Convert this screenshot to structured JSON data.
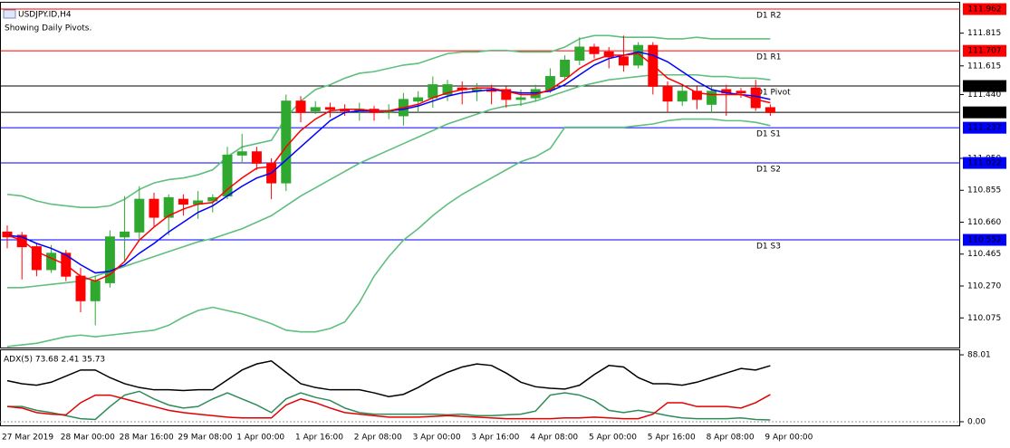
{
  "chart_data": [
    {
      "type": "candlestick",
      "title": "USDJPY.ID,H4",
      "subtitle": "Showing Daily Pivots.",
      "categories": [
        "27 Mar 2019",
        null,
        null,
        null,
        "28 Mar 00:00",
        null,
        null,
        null,
        "28 Mar 16:00",
        null,
        null,
        null,
        "29 Mar 08:00",
        null,
        null,
        null,
        "1 Apr 00:00",
        null,
        null,
        null,
        "1 Apr 16:00",
        null,
        null,
        null,
        "2 Apr 08:00",
        null,
        null,
        null,
        "3 Apr 00:00",
        null,
        null,
        null,
        "3 Apr 16:00",
        null,
        null,
        null,
        "4 Apr 08:00",
        null,
        null,
        null,
        "5 Apr 00:00",
        null,
        null,
        null,
        "5 Apr 16:00",
        null,
        null,
        null,
        "8 Apr 08:00",
        null,
        null,
        null,
        "9 Apr 00:00"
      ],
      "open": [
        110.6,
        110.58,
        110.51,
        110.37,
        110.47,
        110.33,
        110.18,
        110.29,
        110.57,
        110.6,
        110.8,
        110.69,
        110.8,
        110.77,
        110.79,
        110.82,
        111.07,
        111.09,
        111.02,
        110.9,
        111.4,
        111.34,
        111.36,
        111.35,
        111.34,
        111.35,
        111.33,
        111.31,
        111.4,
        111.42,
        111.44,
        111.48,
        111.47,
        111.47,
        111.47,
        111.41,
        111.42,
        111.47,
        111.55,
        111.65,
        111.73,
        111.7,
        111.67,
        111.62,
        111.74,
        111.49,
        111.4,
        111.46,
        111.38,
        111.47,
        111.46,
        111.48,
        111.36
      ],
      "high": [
        110.64,
        110.6,
        110.53,
        110.52,
        110.49,
        110.38,
        110.33,
        110.61,
        110.82,
        110.88,
        110.84,
        110.83,
        110.83,
        110.85,
        110.83,
        111.12,
        111.2,
        111.12,
        111.05,
        111.44,
        111.43,
        111.4,
        111.39,
        111.38,
        111.39,
        111.37,
        111.38,
        111.45,
        111.46,
        111.55,
        111.53,
        111.52,
        111.51,
        111.5,
        111.49,
        111.47,
        111.5,
        111.6,
        111.68,
        111.79,
        111.75,
        111.73,
        111.8,
        111.76,
        111.76,
        111.52,
        111.49,
        111.49,
        111.49,
        111.5,
        111.48,
        111.53,
        111.38
      ],
      "low": [
        110.5,
        110.31,
        110.33,
        110.35,
        110.3,
        110.11,
        110.03,
        110.26,
        110.42,
        110.55,
        110.63,
        110.58,
        110.7,
        110.68,
        110.72,
        110.8,
        111.02,
        110.98,
        110.8,
        110.85,
        111.27,
        111.32,
        111.3,
        111.31,
        111.28,
        111.28,
        111.29,
        111.25,
        111.33,
        111.36,
        111.4,
        111.38,
        111.4,
        111.38,
        111.36,
        111.37,
        111.4,
        111.45,
        111.53,
        111.62,
        111.66,
        111.6,
        111.58,
        111.6,
        111.44,
        111.33,
        111.37,
        111.35,
        111.33,
        111.31,
        111.42,
        111.34,
        111.31
      ],
      "close": [
        110.57,
        110.51,
        110.37,
        110.47,
        110.33,
        110.18,
        110.3,
        110.57,
        110.6,
        110.8,
        110.69,
        110.81,
        110.77,
        110.79,
        110.81,
        111.07,
        111.09,
        111.02,
        110.9,
        111.4,
        111.33,
        111.36,
        111.35,
        111.34,
        111.35,
        111.33,
        111.34,
        111.41,
        111.42,
        111.5,
        111.5,
        111.47,
        111.47,
        111.46,
        111.41,
        111.42,
        111.47,
        111.55,
        111.65,
        111.73,
        111.69,
        111.67,
        111.62,
        111.74,
        111.49,
        111.4,
        111.46,
        111.41,
        111.46,
        111.45,
        111.45,
        111.36,
        111.33
      ],
      "up_color": "#2ea82e",
      "down_color": "#ff0000",
      "lines": [
        {
          "color": "#5fbf7f",
          "values": [
            110.83,
            110.82,
            110.79,
            110.77,
            110.76,
            110.75,
            110.75,
            110.76,
            110.8,
            110.86,
            110.9,
            110.92,
            110.93,
            110.95,
            110.98,
            111.06,
            111.12,
            111.14,
            111.16,
            111.3,
            111.4,
            111.47,
            111.5,
            111.54,
            111.57,
            111.58,
            111.6,
            111.62,
            111.63,
            111.66,
            111.69,
            111.7,
            111.7,
            111.71,
            111.71,
            111.7,
            111.7,
            111.7,
            111.73,
            111.78,
            111.8,
            111.8,
            111.79,
            111.79,
            111.79,
            111.78,
            111.78,
            111.79,
            111.78,
            111.78,
            111.78,
            111.78,
            111.78
          ]
        },
        {
          "color": "#5fbf7f",
          "values": [
            110.26,
            110.26,
            110.27,
            110.28,
            110.29,
            110.3,
            110.33,
            110.36,
            110.39,
            110.42,
            110.45,
            110.48,
            110.51,
            110.54,
            110.56,
            110.59,
            110.62,
            110.66,
            110.7,
            110.76,
            110.82,
            110.87,
            110.92,
            110.97,
            111.02,
            111.06,
            111.1,
            111.14,
            111.18,
            111.22,
            111.26,
            111.29,
            111.32,
            111.35,
            111.37,
            111.38,
            111.4,
            111.43,
            111.46,
            111.49,
            111.51,
            111.53,
            111.54,
            111.55,
            111.56,
            111.56,
            111.56,
            111.56,
            111.55,
            111.55,
            111.54,
            111.54,
            111.53
          ]
        },
        {
          "color": "#5fbf7f",
          "values": [
            109.9,
            109.91,
            109.92,
            109.94,
            109.96,
            109.97,
            109.96,
            109.97,
            109.98,
            109.99,
            110.0,
            110.03,
            110.08,
            110.12,
            110.14,
            110.12,
            110.1,
            110.07,
            110.04,
            110.0,
            109.99,
            109.99,
            110.01,
            110.05,
            110.17,
            110.33,
            110.45,
            110.55,
            110.62,
            110.7,
            110.77,
            110.83,
            110.88,
            110.93,
            110.98,
            111.03,
            111.06,
            111.11,
            111.24,
            111.24,
            111.24,
            111.24,
            111.24,
            111.25,
            111.26,
            111.28,
            111.29,
            111.29,
            111.29,
            111.28,
            111.28,
            111.27,
            111.25
          ]
        },
        {
          "color": "#0000ff",
          "values": [
            110.58,
            110.57,
            110.53,
            110.5,
            110.46,
            110.4,
            110.35,
            110.36,
            110.4,
            110.47,
            110.53,
            110.6,
            110.66,
            110.72,
            110.76,
            110.82,
            110.88,
            110.93,
            110.96,
            111.04,
            111.12,
            111.2,
            111.28,
            111.33,
            111.34,
            111.34,
            111.34,
            111.35,
            111.37,
            111.4,
            111.43,
            111.45,
            111.46,
            111.47,
            111.46,
            111.45,
            111.45,
            111.46,
            111.5,
            111.56,
            111.62,
            111.66,
            111.68,
            111.7,
            111.68,
            111.64,
            111.58,
            111.52,
            111.47,
            111.45,
            111.44,
            111.43,
            111.41
          ]
        },
        {
          "color": "#ff0000",
          "values": [
            110.58,
            110.55,
            110.48,
            110.44,
            110.4,
            110.33,
            110.3,
            110.34,
            110.42,
            110.55,
            110.63,
            110.7,
            110.74,
            110.77,
            110.78,
            110.86,
            110.93,
            110.99,
            111.0,
            111.12,
            111.22,
            111.29,
            111.34,
            111.35,
            111.35,
            111.34,
            111.34,
            111.36,
            111.38,
            111.42,
            111.45,
            111.47,
            111.48,
            111.48,
            111.46,
            111.44,
            111.44,
            111.47,
            111.53,
            111.6,
            111.65,
            111.68,
            111.68,
            111.69,
            111.62,
            111.54,
            111.5,
            111.45,
            111.44,
            111.44,
            111.44,
            111.41,
            111.39
          ]
        }
      ],
      "levels": [
        {
          "label": "D1 R2",
          "value": 111.962,
          "color": "#ff0000"
        },
        {
          "label": "D1 R1",
          "value": 111.707,
          "color": "#ff0000"
        },
        {
          "label": "D1 Pivot",
          "value": 111.492,
          "color": "#000000"
        },
        {
          "value": 111.331,
          "color": "#000000"
        },
        {
          "label": "D1 S1",
          "value": 111.237,
          "color": "#0000ff"
        },
        {
          "label": "D1 S2",
          "value": 111.022,
          "color": "#0000ff"
        },
        {
          "label": "D1 S3",
          "value": 110.552,
          "color": "#0000ff"
        }
      ],
      "ylim": [
        109.894,
        112.001
      ],
      "yticks": [
        111.815,
        111.615,
        {
          "value": 111.44,
          "label": "111.440"
        },
        {
          "value": 111.05,
          "label": "111.050"
        },
        110.855,
        {
          "value": 110.66,
          "label": "110.660"
        },
        110.465,
        {
          "value": 110.27,
          "label": "110.270"
        },
        110.075
      ]
    },
    {
      "type": "line",
      "title": "ADX(5) 73.68 2.41 35.73",
      "series": [
        {
          "color": "#000000",
          "values": [
            54,
            50,
            48,
            52,
            60,
            68,
            68,
            58,
            50,
            45,
            42,
            42,
            41,
            42,
            42,
            55,
            68,
            76,
            80,
            65,
            50,
            45,
            42,
            42,
            42,
            38,
            33,
            36,
            45,
            56,
            65,
            72,
            76,
            74,
            64,
            52,
            46,
            44,
            43,
            48,
            62,
            74,
            72,
            58,
            50,
            50,
            48,
            52,
            58,
            64,
            70,
            68,
            73.68
          ]
        },
        {
          "color": "#2e8b57",
          "values": [
            20,
            20,
            15,
            12,
            8,
            4,
            3,
            20,
            35,
            40,
            30,
            22,
            18,
            20,
            30,
            38,
            30,
            22,
            12,
            30,
            38,
            32,
            28,
            18,
            12,
            10,
            10,
            10,
            10,
            10,
            9,
            10,
            8,
            8,
            9,
            10,
            14,
            35,
            38,
            35,
            28,
            15,
            12,
            15,
            12,
            8,
            5,
            4,
            4,
            4,
            5,
            3,
            2.41
          ]
        },
        {
          "color": "#e00000",
          "values": [
            20,
            18,
            12,
            10,
            9,
            25,
            35,
            35,
            30,
            25,
            20,
            15,
            12,
            10,
            8,
            6,
            5,
            5,
            5,
            22,
            30,
            25,
            18,
            12,
            10,
            8,
            6,
            6,
            6,
            7,
            8,
            7,
            6,
            5,
            4,
            4,
            4,
            4,
            5,
            5,
            6,
            5,
            4,
            4,
            10,
            25,
            25,
            20,
            20,
            20,
            18,
            25,
            35.73
          ]
        }
      ],
      "ylim": [
        -4.8,
        94.0
      ],
      "yticks": [
        88.01,
        {
          "value": 0,
          "label": "0.00"
        }
      ]
    }
  ]
}
